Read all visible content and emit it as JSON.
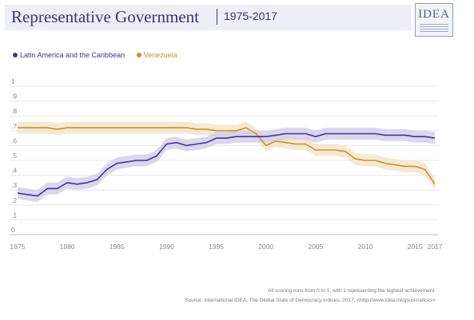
{
  "header": {
    "title": "Representative Government",
    "period": "1975-2017",
    "logo_text": "IDEA"
  },
  "colors": {
    "latam_line": "#3f3696",
    "latam_band": "#cfcae6",
    "venezuela_line": "#c8922f",
    "venezuela_band": "#f3e1c4",
    "title": "#3b327a",
    "header_band": "#eeeef6"
  },
  "chart_data": {
    "type": "line",
    "title": "Representative Government",
    "ylim": [
      0,
      1
    ],
    "xlim": [
      1975,
      2017
    ],
    "grid": "horizontal",
    "legend_position": "top-left",
    "yticks": [
      "0",
      ".1",
      ".2",
      ".3",
      ".4",
      ".5",
      ".6",
      ".7",
      ".8",
      ".9",
      "1"
    ],
    "xticks": [
      "1975",
      "1980",
      "1985",
      "1990",
      "1995",
      "2000",
      "2005",
      "2010",
      "2015",
      "2017"
    ],
    "x": [
      1975,
      1976,
      1977,
      1978,
      1979,
      1980,
      1981,
      1982,
      1983,
      1984,
      1985,
      1986,
      1987,
      1988,
      1989,
      1990,
      1991,
      1992,
      1993,
      1994,
      1995,
      1996,
      1997,
      1998,
      1999,
      2000,
      2001,
      2002,
      2003,
      2004,
      2005,
      2006,
      2007,
      2008,
      2009,
      2010,
      2011,
      2012,
      2013,
      2014,
      2015,
      2016,
      2017
    ],
    "series": [
      {
        "name": "Latin America and the Caribbean",
        "values": [
          0.28,
          0.27,
          0.26,
          0.31,
          0.31,
          0.35,
          0.34,
          0.35,
          0.37,
          0.44,
          0.48,
          0.49,
          0.5,
          0.5,
          0.53,
          0.61,
          0.62,
          0.6,
          0.61,
          0.62,
          0.65,
          0.65,
          0.66,
          0.66,
          0.66,
          0.66,
          0.67,
          0.68,
          0.68,
          0.68,
          0.66,
          0.68,
          0.68,
          0.68,
          0.68,
          0.68,
          0.68,
          0.67,
          0.67,
          0.67,
          0.66,
          0.66,
          0.65
        ],
        "band_halfwidth": 0.04
      },
      {
        "name": "Venezuela",
        "values": [
          0.72,
          0.72,
          0.72,
          0.72,
          0.71,
          0.72,
          0.72,
          0.72,
          0.72,
          0.72,
          0.72,
          0.72,
          0.72,
          0.72,
          0.72,
          0.72,
          0.72,
          0.72,
          0.71,
          0.71,
          0.7,
          0.7,
          0.7,
          0.72,
          0.68,
          0.6,
          0.63,
          0.62,
          0.61,
          0.61,
          0.57,
          0.57,
          0.57,
          0.56,
          0.51,
          0.5,
          0.5,
          0.48,
          0.47,
          0.46,
          0.46,
          0.44,
          0.34
        ],
        "band_halfwidth": 0.04
      }
    ]
  },
  "notes": {
    "scoring": "All scoring runs from 0 to 1, with 1 representing the highest achievement.",
    "source": "Source: International IDEA, The Global State of Democracy Indices, 2017, <http://www.idea.int/gsod-indices>"
  }
}
